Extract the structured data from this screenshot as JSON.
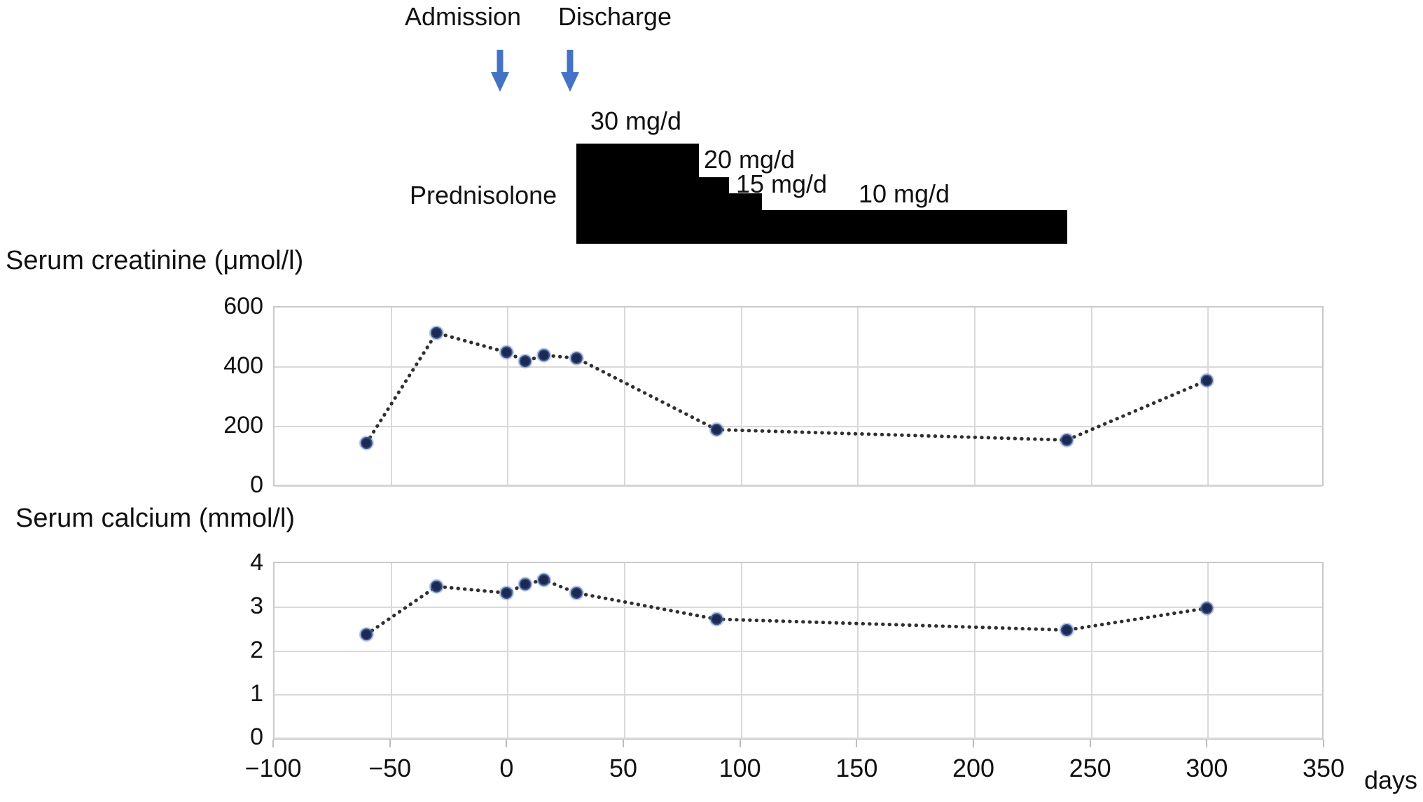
{
  "figure": {
    "admission_label": "Admission",
    "discharge_label": "Discharge",
    "days_axis_label": "days",
    "arrow_color": "#4472C4",
    "admission_day": 0,
    "discharge_day": 30
  },
  "prednisolone": {
    "label": "Prednisolone",
    "bar_color": "#000000",
    "segments": [
      {
        "dose_label": "30 mg/d",
        "dose_mg": 30,
        "day_start": 30,
        "day_end": 82
      },
      {
        "dose_label": "20 mg/d",
        "dose_mg": 20,
        "day_start": 82,
        "day_end": 95
      },
      {
        "dose_label": "15 mg/d",
        "dose_mg": 15,
        "day_start": 95,
        "day_end": 109
      },
      {
        "dose_label": "10 mg/d",
        "dose_mg": 10,
        "day_start": 109,
        "day_end": 240
      }
    ]
  },
  "chart_data": [
    {
      "id": "creatinine",
      "type": "scatter",
      "title": "Serum creatinine (μmol/l)",
      "line_style": "dotted",
      "marker_color": "#1b2a52",
      "line_color": "#2f2f2f",
      "x": [
        -60,
        -30,
        0,
        8,
        16,
        30,
        90,
        240,
        300
      ],
      "values": [
        140,
        510,
        445,
        415,
        435,
        425,
        185,
        150,
        350
      ],
      "xlim": [
        -100,
        350
      ],
      "ylim": [
        0,
        600
      ],
      "yticks": [
        600,
        400,
        200,
        0
      ],
      "ytick_labels": [
        "600",
        "400",
        "200",
        "0"
      ],
      "grid": true,
      "legend": "none"
    },
    {
      "id": "calcium",
      "type": "scatter",
      "title": "Serum calcium (mmol/l)",
      "line_style": "dotted",
      "marker_color": "#1b2a52",
      "line_color": "#2f2f2f",
      "x": [
        -60,
        -30,
        0,
        8,
        16,
        30,
        90,
        240,
        300
      ],
      "values": [
        2.35,
        3.45,
        3.3,
        3.5,
        3.6,
        3.3,
        2.7,
        2.45,
        2.95
      ],
      "xlim": [
        -100,
        350
      ],
      "ylim": [
        0,
        4
      ],
      "yticks": [
        4,
        3,
        2,
        1,
        0
      ],
      "ytick_labels": [
        "4",
        "3",
        "2",
        "1",
        "0"
      ],
      "xticks": [
        -100,
        -50,
        0,
        50,
        100,
        150,
        200,
        250,
        300,
        350
      ],
      "xtick_labels": [
        "−100",
        "−50",
        "0",
        "50",
        "100",
        "150",
        "200",
        "250",
        "300",
        "350"
      ],
      "xlabel": "days",
      "grid": true,
      "legend": "none"
    }
  ]
}
